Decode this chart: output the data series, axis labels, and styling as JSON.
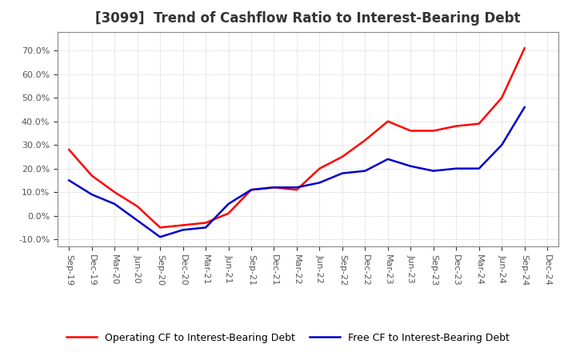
{
  "title": "[3099]  Trend of Cashflow Ratio to Interest-Bearing Debt",
  "x_labels": [
    "Sep-19",
    "Dec-19",
    "Mar-20",
    "Jun-20",
    "Sep-20",
    "Dec-20",
    "Mar-21",
    "Jun-21",
    "Sep-21",
    "Dec-21",
    "Mar-22",
    "Jun-22",
    "Sep-22",
    "Dec-22",
    "Mar-23",
    "Jun-23",
    "Sep-23",
    "Dec-23",
    "Mar-24",
    "Jun-24",
    "Sep-24",
    "Dec-24"
  ],
  "operating_cf": [
    0.28,
    0.17,
    0.1,
    0.04,
    -0.05,
    -0.04,
    -0.03,
    0.01,
    0.11,
    0.12,
    0.11,
    0.2,
    0.25,
    0.32,
    0.4,
    0.36,
    0.36,
    0.38,
    0.39,
    0.5,
    0.71,
    null
  ],
  "free_cf": [
    0.15,
    0.09,
    0.05,
    -0.02,
    -0.09,
    -0.06,
    -0.05,
    0.05,
    0.11,
    0.12,
    0.12,
    0.14,
    0.18,
    0.19,
    0.24,
    0.21,
    0.19,
    0.2,
    0.2,
    0.3,
    0.46,
    null
  ],
  "operating_cf_color": "#FF0000",
  "free_cf_color": "#0000CC",
  "line_width": 1.8,
  "ylim": [
    -0.13,
    0.78
  ],
  "yticks": [
    -0.1,
    0.0,
    0.1,
    0.2,
    0.3,
    0.4,
    0.5,
    0.6,
    0.7
  ],
  "background_color": "#FFFFFF",
  "plot_bg_color": "#FFFFFF",
  "grid_color": "#BBBBBB",
  "legend_operating": "Operating CF to Interest-Bearing Debt",
  "legend_free": "Free CF to Interest-Bearing Debt",
  "title_fontsize": 12,
  "tick_fontsize": 8,
  "legend_fontsize": 9
}
